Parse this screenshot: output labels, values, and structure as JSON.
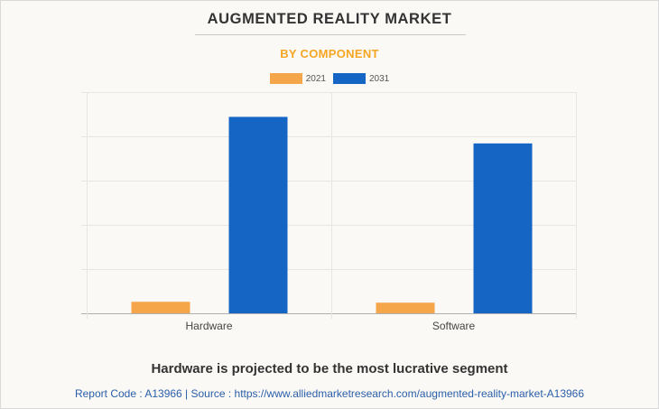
{
  "header": {
    "title": "AUGMENTED REALITY MARKET",
    "subtitle": "BY COMPONENT"
  },
  "colors": {
    "series_2021": "#f5a54a",
    "series_2031": "#1565c4",
    "subtitle": "#f5a623",
    "grid": "#e6e6e6",
    "axis": "#b0b0b0"
  },
  "chart_data": {
    "type": "bar",
    "categories": [
      "Hardware",
      "Software"
    ],
    "series": [
      {
        "name": "2021",
        "values": [
          2.6,
          2.4
        ]
      },
      {
        "name": "2031",
        "values": [
          44.4,
          38.4
        ]
      }
    ],
    "ylim": [
      0,
      50
    ],
    "y_ticks": [
      0,
      10,
      20,
      30,
      40,
      50
    ],
    "grid": true,
    "legend": "top-center",
    "y_tick_labels_visible": false
  },
  "footer": {
    "tagline": "Hardware is projected to be the most lucrative segment",
    "source": "Report Code : A13966  |  Source : https://www.alliedmarketresearch.com/augmented-reality-market-A13966"
  }
}
